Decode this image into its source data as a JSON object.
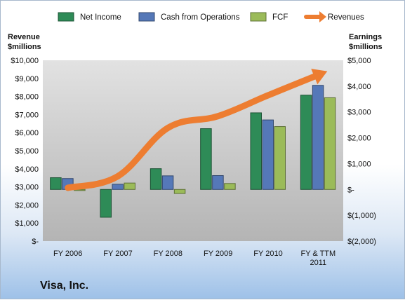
{
  "chart_data": {
    "type": "bar",
    "title": "Visa, Inc.",
    "categories": [
      [
        "FY 2006"
      ],
      [
        "FY 2007"
      ],
      [
        "FY 2008"
      ],
      [
        "FY 2009"
      ],
      [
        "FY 2010"
      ],
      [
        "FY & TTM",
        "2011"
      ]
    ],
    "series": [
      {
        "name": "Net Income",
        "axis": "right",
        "kind": "bar",
        "color": "#2e8b57",
        "values": [
          455,
          -1076,
          804,
          2353,
          2966,
          3650
        ]
      },
      {
        "name": "Cash from Operations",
        "axis": "right",
        "kind": "bar",
        "color": "#5578b8",
        "values": [
          422,
          202,
          527,
          537,
          2691,
          4030
        ]
      },
      {
        "name": "FCF",
        "axis": "right",
        "kind": "bar",
        "color": "#9bbb59",
        "values": [
          0,
          248,
          -157,
          230,
          2434,
          3550
        ]
      },
      {
        "name": "Revenues",
        "axis": "left",
        "kind": "arrow-line",
        "color": "#ed7d31",
        "values": [
          2948,
          3590,
          6263,
          6911,
          8065,
          9188
        ]
      }
    ],
    "left_axis": {
      "title": [
        "Revenue",
        "$millions"
      ],
      "ylim": [
        0,
        10000
      ],
      "ticks": [
        0,
        1000,
        2000,
        3000,
        4000,
        5000,
        6000,
        7000,
        8000,
        9000,
        10000
      ],
      "tick_labels": [
        "$-",
        "$1,000",
        "$2,000",
        "$3,000",
        "$4,000",
        "$5,000",
        "$6,000",
        "$7,000",
        "$8,000",
        "$9,000",
        "$10,000"
      ]
    },
    "right_axis": {
      "title": [
        "Earnings",
        "$millions"
      ],
      "ylim": [
        -2000,
        5000
      ],
      "ticks": [
        -2000,
        -1000,
        0,
        1000,
        2000,
        3000,
        4000,
        5000
      ],
      "tick_labels": [
        "$(2,000)",
        "$(1,000)",
        "$-",
        "$1,000",
        "$2,000",
        "$3,000",
        "$4,000",
        "$5,000"
      ]
    },
    "legend": {
      "position": "top",
      "entries": [
        "Net Income",
        "Cash from Operations",
        "FCF",
        "Revenues"
      ]
    },
    "grid": false
  }
}
